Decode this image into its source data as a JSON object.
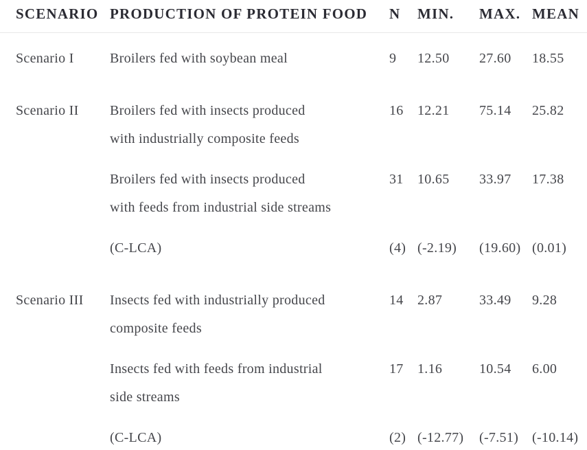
{
  "table": {
    "columns": {
      "scenario": "SCENARIO",
      "production": "PRODUCTION OF PROTEIN FOOD",
      "n": "N",
      "min": "MIN.",
      "max": "MAX.",
      "mean": "MEAN"
    },
    "rows": [
      {
        "scenario": "Scenario I",
        "production": "Broilers fed with soybean meal",
        "n": "9",
        "min": "12.50",
        "max": "27.60",
        "mean": "18.55"
      },
      {
        "scenario": "Scenario II",
        "production": "Broilers fed with insects produced\nwith industrially composite feeds",
        "n": "16",
        "min": "12.21",
        "max": "75.14",
        "mean": "25.82"
      },
      {
        "scenario": "",
        "production": "Broilers fed with insects produced\nwith feeds from industrial side streams",
        "n": "31",
        "min": "10.65",
        "max": "33.97",
        "mean": "17.38"
      },
      {
        "scenario": "",
        "production": "(C-LCA)",
        "n": "(4)",
        "min": "(-2.19)",
        "max": "(19.60)",
        "mean": "(0.01)"
      },
      {
        "scenario": "Scenario III",
        "production": "Insects fed with industrially produced\ncomposite feeds",
        "n": "14",
        "min": "2.87",
        "max": "33.49",
        "mean": "9.28"
      },
      {
        "scenario": "",
        "production": "Insects fed with feeds from industrial\nside streams",
        "n": "17",
        "min": "1.16",
        "max": "10.54",
        "mean": "6.00"
      },
      {
        "scenario": "",
        "production": "(C-LCA)",
        "n": "(2)",
        "min": "(-12.77)",
        "max": "(-7.51)",
        "mean": "(-10.14)"
      }
    ],
    "colors": {
      "header_text": "#2b2b33",
      "body_text": "#45464b",
      "rule": "#e8e8e8",
      "background": "#ffffff"
    }
  }
}
